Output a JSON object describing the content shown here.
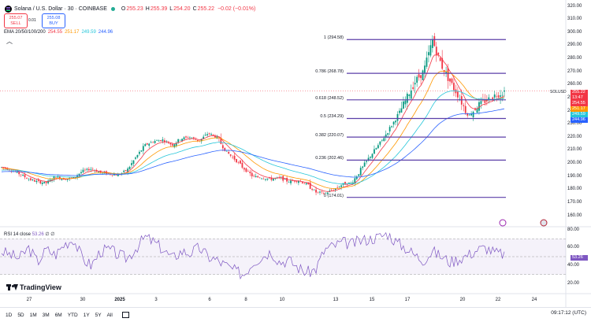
{
  "header": {
    "symbol_title": "Solana / U.S. Dollar · 30 · COINBASE",
    "ohlc": [
      {
        "k": "O",
        "v": "255.23"
      },
      {
        "k": "H",
        "v": "255.39"
      },
      {
        "k": "L",
        "v": "254.20"
      },
      {
        "k": "C",
        "v": "255.22"
      },
      {
        "k": "",
        "v": "−0.02 (−0.01%)"
      }
    ],
    "sell_price": "255.07",
    "sell_label": "SELL",
    "buy_price": "255.08",
    "buy_label": "BUY",
    "spread": "0.01"
  },
  "ema": {
    "label": "EMA 20/50/100/200",
    "values": [
      {
        "v": "254.55",
        "color": "#f23645"
      },
      {
        "v": "251.17",
        "color": "#ff9800"
      },
      {
        "v": "249.59",
        "color": "#26c6da"
      },
      {
        "v": "244.96",
        "color": "#2962ff"
      }
    ]
  },
  "price_axis": [
    "320.00",
    "310.00",
    "300.00",
    "290.00",
    "280.00",
    "270.00",
    "260.00",
    "250.00",
    "240.00",
    "230.00",
    "220.00",
    "210.00",
    "200.00",
    "190.00",
    "180.00",
    "170.00",
    "160.00"
  ],
  "price_tags": [
    {
      "label": "SOLUSD",
      "text": "255.22",
      "color": "#f23645"
    },
    {
      "label": "time",
      "text": "13:47",
      "color": "#f23645"
    },
    {
      "label": "ema20",
      "text": "254.55",
      "color": "#f23645"
    },
    {
      "label": "ema50",
      "text": "251.17",
      "color": "#ff9800"
    },
    {
      "label": "ema100",
      "text": "249.59",
      "color": "#26c6da"
    },
    {
      "label": "ema200",
      "text": "244.96",
      "color": "#2962ff"
    }
  ],
  "fib_levels": [
    {
      "label": "1 (294.58)",
      "price": 294.58
    },
    {
      "label": "0.786 (268.78)",
      "price": 268.78
    },
    {
      "label": "0.618 (248.52)",
      "price": 248.52
    },
    {
      "label": "0.5 (234.29)",
      "price": 234.29
    },
    {
      "label": "0.382 (220.07)",
      "price": 220.07
    },
    {
      "label": "0.236 (202.46)",
      "price": 202.46
    },
    {
      "label": "0 (174.01)",
      "price": 174.01
    }
  ],
  "rsi": {
    "label": "RSI 14 close",
    "value": "53.26",
    "extra": "∅ ∅",
    "axis": [
      "80.00",
      "60.00",
      "40.00",
      "20.00"
    ],
    "tag": "53.26"
  },
  "time_axis": [
    "27",
    "30",
    "2025",
    "3",
    "6",
    "8",
    "10",
    "13",
    "15",
    "17",
    "20",
    "22",
    "24"
  ],
  "bottom": {
    "ranges": [
      "1D",
      "5D",
      "1M",
      "3M",
      "6M",
      "YTD",
      "1Y",
      "5Y",
      "All"
    ],
    "clock": "09:17:12 (UTC)",
    "brand": "TradingView"
  },
  "colors": {
    "fib": "#5b3fa8",
    "rsi": "#7e57c2",
    "up": "#089981",
    "down": "#f23645"
  },
  "chart_data": {
    "type": "candlestick",
    "title": "Solana / U.S. Dollar · 30 · COINBASE",
    "ylim": [
      160,
      320
    ],
    "series": [
      {
        "name": "EMA 20",
        "values": []
      },
      {
        "name": "EMA 50",
        "values": []
      },
      {
        "name": "EMA 100",
        "values": []
      },
      {
        "name": "EMA 200",
        "values": []
      }
    ],
    "price_path": [
      197,
      195,
      192,
      188,
      186,
      185,
      190,
      188,
      189,
      194,
      196,
      193,
      192,
      191,
      195,
      205,
      214,
      217,
      218,
      214,
      219,
      220,
      217,
      223,
      220,
      209,
      203,
      196,
      190,
      189,
      188,
      189,
      186,
      187,
      184,
      178,
      177,
      180,
      184,
      185,
      195,
      205,
      214,
      224,
      235,
      248,
      262,
      270,
      294,
      275,
      262,
      250,
      236,
      244,
      248,
      252,
      255
    ],
    "rsi_path": [
      56,
      52,
      48,
      60,
      44,
      58,
      52,
      64,
      70,
      48,
      40,
      56,
      58,
      52,
      48,
      60,
      72,
      66,
      58,
      48,
      56,
      54,
      60,
      50,
      46,
      40,
      34,
      30,
      44,
      50,
      56,
      44,
      46,
      38,
      32,
      36,
      58,
      62,
      66,
      64,
      68,
      70,
      72,
      76,
      66,
      60,
      52,
      46,
      56,
      50,
      44,
      48,
      52,
      58,
      60,
      54,
      53
    ]
  }
}
